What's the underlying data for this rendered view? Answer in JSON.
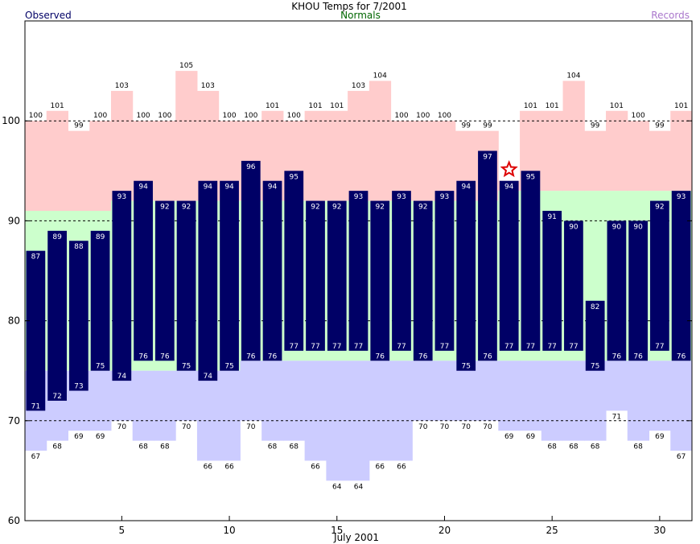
{
  "header": {
    "title": "KHOU Temps for 7/2001",
    "left_label": "Observed",
    "center_label": "Normals",
    "right_label": "Records"
  },
  "colors": {
    "observed": "#000066",
    "normals": "#ccffcc",
    "record_high": "#ffcccc",
    "record_low": "#ccccff",
    "observed_text": "#000066",
    "normals_text": "#006600",
    "records_text": "#aa77cc",
    "star": "#dd0000"
  },
  "chart_data": {
    "type": "bar",
    "title": "KHOU Temps for 7/2001",
    "xlabel": "July 2001",
    "ylabel": "",
    "xlim": [
      1,
      31
    ],
    "ylim": [
      60,
      110
    ],
    "x_ticks": [
      "5",
      "10",
      "15",
      "20",
      "25",
      "30"
    ],
    "y_ticks": [
      "60",
      "70",
      "80",
      "90",
      "100"
    ],
    "gridlines_dashed": [
      70,
      80,
      90,
      100
    ],
    "days": [
      1,
      2,
      3,
      4,
      5,
      6,
      7,
      8,
      9,
      10,
      11,
      12,
      13,
      14,
      15,
      16,
      17,
      18,
      19,
      20,
      21,
      22,
      23,
      24,
      25,
      26,
      27,
      28,
      29,
      30,
      31
    ],
    "observed_high": [
      87,
      89,
      88,
      89,
      93,
      94,
      92,
      92,
      94,
      94,
      96,
      94,
      95,
      92,
      92,
      93,
      92,
      93,
      92,
      93,
      94,
      97,
      94,
      95,
      91,
      90,
      82,
      90,
      90,
      92,
      93
    ],
    "observed_low": [
      71,
      72,
      73,
      75,
      74,
      76,
      76,
      75,
      74,
      75,
      76,
      76,
      77,
      77,
      77,
      77,
      76,
      77,
      76,
      77,
      75,
      76,
      77,
      77,
      77,
      77,
      75,
      76,
      76,
      77,
      76
    ],
    "normal_high": [
      91,
      91,
      91,
      91,
      92,
      92,
      92,
      92,
      92,
      92,
      92,
      92,
      92,
      92,
      92,
      92,
      92,
      92,
      92,
      92,
      92,
      92,
      93,
      93,
      93,
      93,
      93,
      93,
      93,
      93,
      93
    ],
    "normal_low": [
      75,
      75,
      75,
      75,
      75,
      75,
      75,
      75,
      75,
      75,
      76,
      76,
      76,
      76,
      76,
      76,
      76,
      76,
      76,
      76,
      76,
      76,
      76,
      76,
      76,
      76,
      76,
      76,
      76,
      76,
      76
    ],
    "record_high": [
      100,
      101,
      99,
      100,
      103,
      100,
      100,
      105,
      103,
      100,
      100,
      101,
      100,
      101,
      101,
      103,
      104,
      100,
      100,
      100,
      99,
      99,
      null,
      101,
      101,
      104,
      99,
      101,
      100,
      99,
      101
    ],
    "record_low": [
      67,
      68,
      69,
      69,
      70,
      68,
      68,
      70,
      66,
      66,
      70,
      68,
      68,
      66,
      64,
      64,
      66,
      66,
      70,
      70,
      70,
      70,
      69,
      69,
      68,
      68,
      68,
      71,
      68,
      69,
      67
    ],
    "record_set_days": [
      23
    ]
  }
}
